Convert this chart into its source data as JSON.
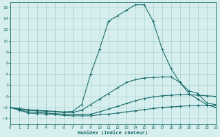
{
  "xlabel": "Humidex (Indice chaleur)",
  "bg_color": "#d6eeee",
  "grid_color": "#afd4d4",
  "line_color": "#1a6b6b",
  "xlim": [
    0,
    23
  ],
  "ylim": [
    -5,
    17
  ],
  "xticks": [
    0,
    1,
    2,
    3,
    4,
    5,
    6,
    7,
    8,
    9,
    10,
    11,
    12,
    13,
    14,
    15,
    16,
    17,
    18,
    19,
    20,
    21,
    22,
    23
  ],
  "yticks": [
    -4,
    -2,
    0,
    2,
    4,
    6,
    8,
    10,
    12,
    14,
    16
  ],
  "curves": [
    {
      "x": [
        0,
        1,
        2,
        3,
        4,
        5,
        6,
        7,
        8,
        9,
        10,
        11,
        12,
        13,
        14,
        15,
        16,
        17,
        18,
        19,
        20,
        21,
        22,
        23
      ],
      "y": [
        -2,
        -2.5,
        -3.0,
        -3.1,
        -3.2,
        -3.3,
        -3.4,
        -3.5,
        -3.5,
        -3.5,
        -3.3,
        -3.2,
        -3.0,
        -2.8,
        -2.6,
        -2.4,
        -2.2,
        -2.0,
        -1.9,
        -1.8,
        -1.7,
        -1.6,
        -1.6,
        -1.6
      ]
    },
    {
      "x": [
        0,
        1,
        2,
        3,
        4,
        5,
        6,
        7,
        8,
        9,
        10,
        11,
        12,
        13,
        14,
        15,
        16,
        17,
        18,
        19,
        20,
        21,
        22,
        23
      ],
      "y": [
        -2,
        -2.4,
        -2.8,
        -2.9,
        -3.0,
        -3.1,
        -3.2,
        -3.3,
        -3.3,
        -3.2,
        -2.8,
        -2.3,
        -1.8,
        -1.3,
        -0.8,
        -0.4,
        -0.1,
        0.1,
        0.2,
        0.3,
        0.3,
        0.2,
        0.1,
        0.0
      ]
    },
    {
      "x": [
        0,
        1,
        2,
        3,
        4,
        5,
        6,
        7,
        8,
        9,
        10,
        11,
        12,
        13,
        14,
        15,
        16,
        17,
        18,
        19,
        20,
        21,
        22,
        23
      ],
      "y": [
        -2,
        -2.3,
        -2.5,
        -2.6,
        -2.7,
        -2.8,
        -2.9,
        -2.9,
        -2.5,
        -1.5,
        -0.5,
        0.5,
        1.5,
        2.5,
        3.0,
        3.3,
        3.4,
        3.5,
        3.5,
        2.5,
        1.0,
        0.5,
        -1.2,
        -1.5
      ]
    },
    {
      "x": [
        0,
        1,
        2,
        3,
        4,
        5,
        6,
        7,
        8,
        9,
        10,
        11,
        12,
        13,
        14,
        15,
        16,
        17,
        18,
        19,
        20,
        21,
        22,
        23
      ],
      "y": [
        -2,
        -2.2,
        -2.4,
        -2.5,
        -2.6,
        -2.7,
        -2.8,
        -2.7,
        -1.5,
        4.0,
        8.5,
        13.5,
        14.5,
        15.5,
        16.5,
        16.5,
        13.5,
        8.5,
        5.0,
        2.5,
        0.5,
        -0.5,
        -1.5,
        -2.0
      ]
    }
  ]
}
